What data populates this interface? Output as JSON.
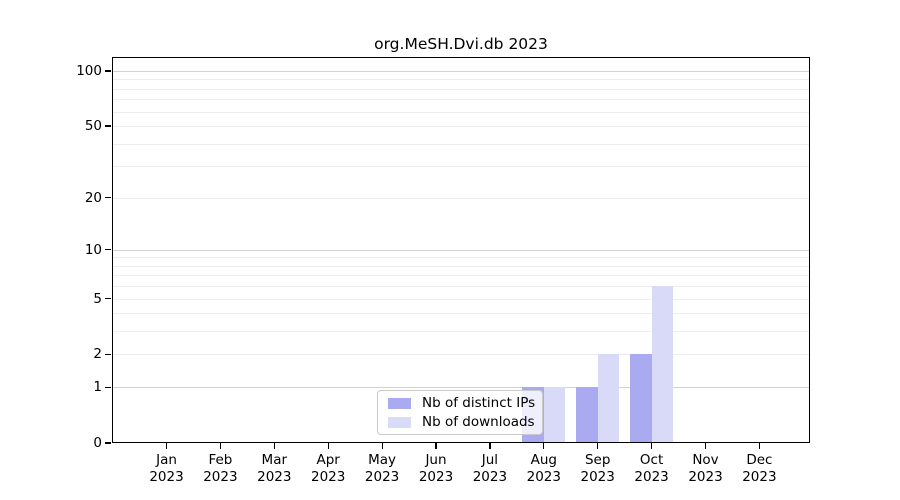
{
  "title": "org.MeSH.Dvi.db 2023",
  "chart_data": {
    "type": "bar",
    "title": "org.MeSH.Dvi.db 2023",
    "categories": [
      "Jan",
      "Feb",
      "Mar",
      "Apr",
      "May",
      "Jun",
      "Jul",
      "Aug",
      "Sep",
      "Oct",
      "Nov",
      "Dec"
    ],
    "category_year": "2023",
    "series": [
      {
        "name": "Nb of distinct IPs",
        "color": "#aaaaf0",
        "values": [
          0,
          0,
          0,
          0,
          0,
          0,
          0,
          1,
          1,
          2,
          0,
          0
        ]
      },
      {
        "name": "Nb of downloads",
        "color": "#d9d9f8",
        "values": [
          0,
          0,
          0,
          0,
          0,
          0,
          0,
          1,
          2,
          6,
          0,
          0
        ]
      }
    ],
    "yscale": "log1p",
    "ylim": [
      0,
      119
    ],
    "y_ticks": [
      0,
      1,
      2,
      5,
      10,
      20,
      50,
      100
    ],
    "y_tick_labels": [
      "0",
      "1",
      "2",
      "5",
      "10",
      "20",
      "50",
      "100"
    ],
    "y_major_gridlines": [
      1,
      10,
      100
    ],
    "y_minor_gridlines": [
      2,
      3,
      4,
      5,
      6,
      7,
      8,
      9,
      20,
      30,
      40,
      50,
      60,
      70,
      80,
      90
    ],
    "grid": true,
    "legend": {
      "position": "inside lower center",
      "entries": [
        "Nb of distinct IPs",
        "Nb of downloads"
      ]
    },
    "colors": {
      "major_grid": "#d2d2d2",
      "minor_grid": "#ededed",
      "axis": "#000000"
    }
  }
}
